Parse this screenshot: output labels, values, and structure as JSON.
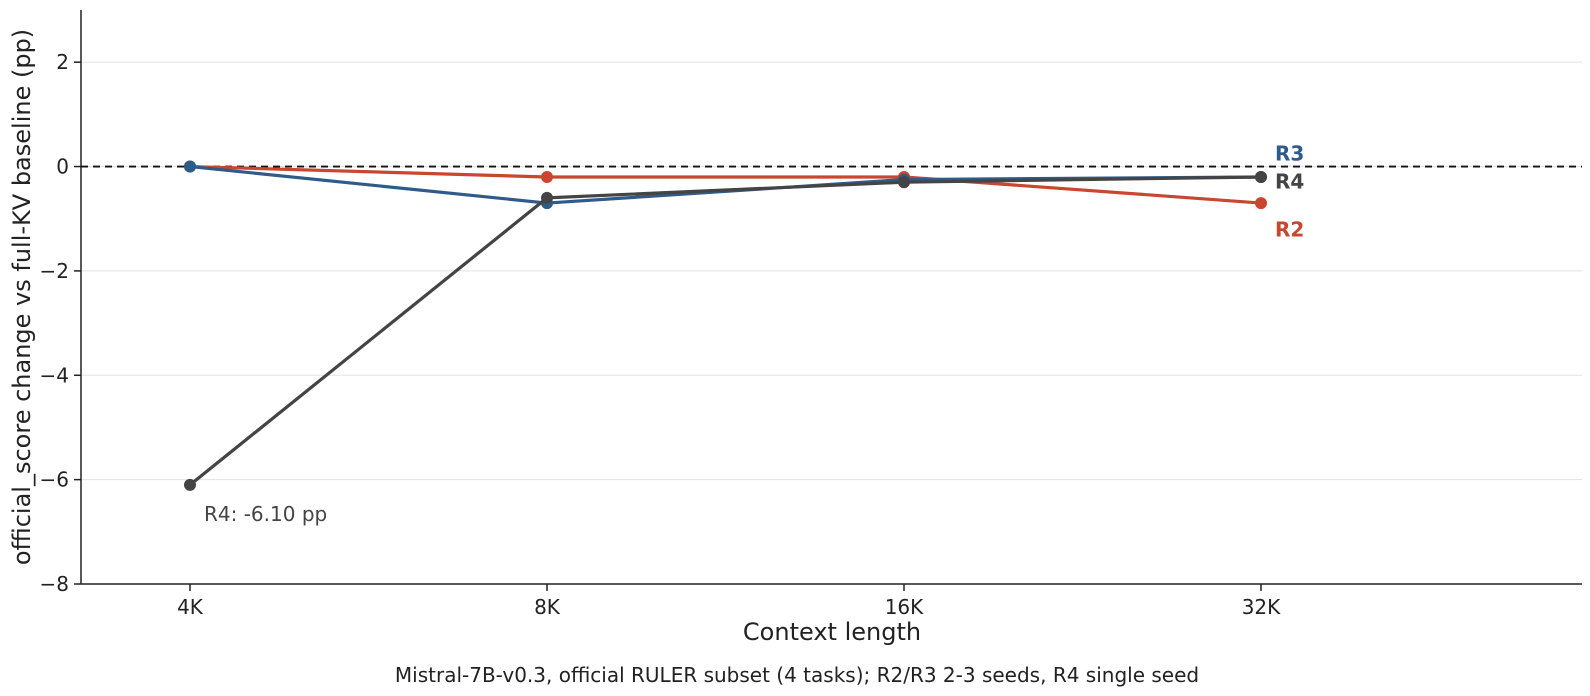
{
  "chart_data": {
    "type": "line",
    "categories": [
      "4K",
      "8K",
      "16K",
      "32K"
    ],
    "xlabel": "Context length",
    "ylabel": "official_score change vs full-KV baseline (pp)",
    "ylim": [
      -8,
      3
    ],
    "yticks": [
      -8,
      -6,
      -4,
      -2,
      0,
      2
    ],
    "ytick_labels": [
      "−8",
      "−6",
      "−4",
      "−2",
      "0",
      "2"
    ],
    "reference_line": {
      "y": 0,
      "style": "dashed",
      "color": "#111111"
    },
    "grid": "horizontal",
    "series": [
      {
        "name": "R2",
        "color": "#c8472e",
        "values": [
          0.0,
          -0.2,
          -0.2,
          -0.7
        ]
      },
      {
        "name": "R3",
        "color": "#2e5b8a",
        "values": [
          0.0,
          -0.7,
          -0.25,
          -0.2
        ]
      },
      {
        "name": "R4",
        "color": "#444444",
        "values": [
          -6.1,
          -0.6,
          -0.3,
          -0.2
        ]
      }
    ],
    "annotations": [
      {
        "text": "R4: -6.10 pp",
        "series": "R4",
        "category": "4K",
        "value": -6.1
      }
    ],
    "caption": "Mistral-7B-v0.3, official RULER subset (4 tasks); R2/R3 2-3 seeds, R4 single seed"
  }
}
